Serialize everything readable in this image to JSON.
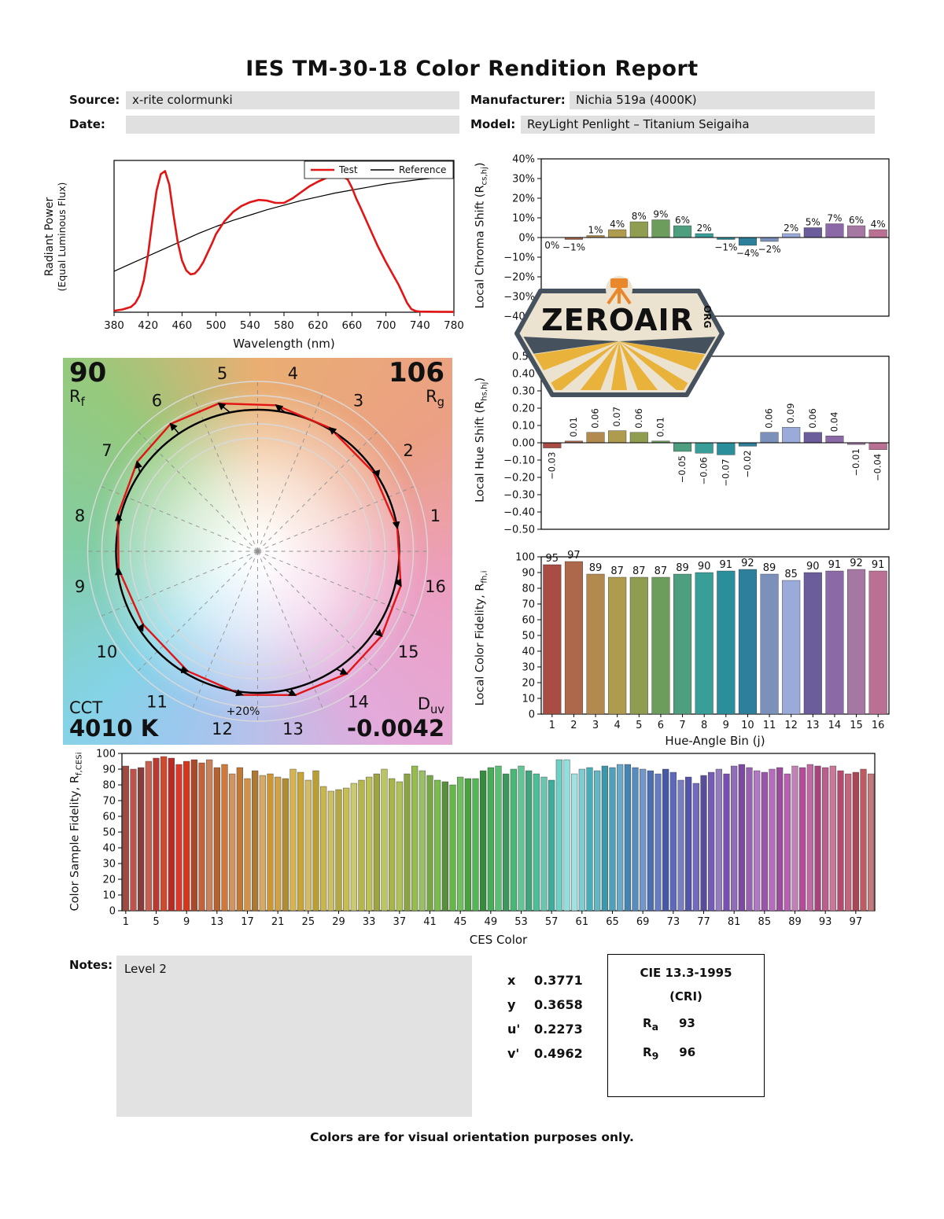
{
  "title": "IES TM-30-18 Color Rendition Report",
  "header": {
    "source_label": "Source:",
    "source_value": "x-rite colormunki",
    "manufacturer_label": "Manufacturer:",
    "manufacturer_value": "Nichia 519a (4000K)",
    "date_label": "Date:",
    "date_value": "",
    "model_label": "Model:",
    "model_value": "ReyLight Penlight – Titanium Seigaiha"
  },
  "watermark": {
    "name": "ZEROAIR",
    "org": "ORG"
  },
  "hue_bin_colors": [
    "#a84c44",
    "#ad684c",
    "#b28a50",
    "#ae9b4e",
    "#8f9d50",
    "#6d9d5c",
    "#4d9f80",
    "#389e97",
    "#2b8f9b",
    "#2d7f9c",
    "#7b90ba",
    "#9aaad9",
    "#6b5c9b",
    "#8a69a6",
    "#a478a2",
    "#ba7093"
  ],
  "chart_data": [
    {
      "id": "spd",
      "type": "line",
      "xlabel": "Wavelength (nm)",
      "ylabel_line1": "Radiant Power",
      "ylabel_line2": "(Equal Luminous Flux)",
      "xlim": [
        380,
        780
      ],
      "xticks": [
        380,
        420,
        460,
        500,
        540,
        580,
        620,
        660,
        700,
        740,
        780
      ],
      "legend": [
        {
          "label": "Test",
          "color": "#e21414"
        },
        {
          "label": "Reference",
          "color": "#000000"
        }
      ],
      "series": [
        {
          "name": "Reference",
          "color": "#000000",
          "width": 1.2,
          "points": [
            [
              380,
              0.27
            ],
            [
              400,
              0.32
            ],
            [
              420,
              0.37
            ],
            [
              440,
              0.42
            ],
            [
              460,
              0.47
            ],
            [
              480,
              0.52
            ],
            [
              500,
              0.565
            ],
            [
              520,
              0.605
            ],
            [
              540,
              0.64
            ],
            [
              560,
              0.675
            ],
            [
              580,
              0.705
            ],
            [
              600,
              0.735
            ],
            [
              620,
              0.76
            ],
            [
              640,
              0.785
            ],
            [
              660,
              0.805
            ],
            [
              680,
              0.825
            ],
            [
              700,
              0.845
            ],
            [
              720,
              0.86
            ],
            [
              740,
              0.875
            ],
            [
              760,
              0.885
            ],
            [
              780,
              0.895
            ]
          ]
        },
        {
          "name": "Test",
          "color": "#e21414",
          "width": 2.6,
          "points": [
            [
              380,
              0.01
            ],
            [
              390,
              0.018
            ],
            [
              400,
              0.035
            ],
            [
              405,
              0.06
            ],
            [
              410,
              0.11
            ],
            [
              415,
              0.21
            ],
            [
              420,
              0.38
            ],
            [
              425,
              0.6
            ],
            [
              430,
              0.8
            ],
            [
              435,
              0.91
            ],
            [
              440,
              0.93
            ],
            [
              445,
              0.84
            ],
            [
              450,
              0.64
            ],
            [
              455,
              0.46
            ],
            [
              460,
              0.34
            ],
            [
              465,
              0.275
            ],
            [
              470,
              0.25
            ],
            [
              475,
              0.255
            ],
            [
              480,
              0.285
            ],
            [
              485,
              0.33
            ],
            [
              490,
              0.39
            ],
            [
              495,
              0.45
            ],
            [
              500,
              0.515
            ],
            [
              510,
              0.6
            ],
            [
              520,
              0.66
            ],
            [
              530,
              0.7
            ],
            [
              540,
              0.725
            ],
            [
              550,
              0.74
            ],
            [
              560,
              0.735
            ],
            [
              570,
              0.72
            ],
            [
              580,
              0.72
            ],
            [
              590,
              0.75
            ],
            [
              600,
              0.79
            ],
            [
              610,
              0.83
            ],
            [
              620,
              0.86
            ],
            [
              630,
              0.885
            ],
            [
              640,
              0.9
            ],
            [
              650,
              0.89
            ],
            [
              655,
              0.875
            ],
            [
              660,
              0.82
            ],
            [
              665,
              0.75
            ],
            [
              670,
              0.69
            ],
            [
              680,
              0.565
            ],
            [
              690,
              0.44
            ],
            [
              700,
              0.33
            ],
            [
              710,
              0.23
            ],
            [
              715,
              0.18
            ],
            [
              720,
              0.12
            ],
            [
              725,
              0.06
            ],
            [
              730,
              0.02
            ],
            [
              735,
              0.008
            ],
            [
              740,
              0.004
            ],
            [
              760,
              0.003
            ],
            [
              780,
              0.002
            ]
          ]
        }
      ]
    },
    {
      "id": "chroma_shift",
      "type": "bar",
      "ylabel_main": "Local Chroma Shift (R",
      "ylabel_sub": "cs,hj",
      "ylabel_end": ")",
      "ylim": [
        -40,
        40
      ],
      "ystep": 10,
      "yunit": "%",
      "categories": [
        1,
        2,
        3,
        4,
        5,
        6,
        7,
        8,
        9,
        10,
        11,
        12,
        13,
        14,
        15,
        16
      ],
      "values": [
        0,
        -1,
        1,
        4,
        8,
        9,
        6,
        2,
        -1,
        -4,
        -2,
        2,
        5,
        7,
        6,
        4
      ],
      "labels": [
        "0%",
        "-1%",
        "1%",
        "4%",
        "8%",
        "9%",
        "6%",
        "2%",
        "-1%",
        "-4%",
        "-2%",
        "2%",
        "5%",
        "7%",
        "6%",
        "4%"
      ]
    },
    {
      "id": "hue_shift",
      "type": "bar",
      "ylabel_main": "Local Hue Shift (R",
      "ylabel_sub": "hs,hj",
      "ylabel_end": ")",
      "ylim": [
        -0.5,
        0.5
      ],
      "ystep": 0.1,
      "categories": [
        1,
        2,
        3,
        4,
        5,
        6,
        7,
        8,
        9,
        10,
        11,
        12,
        13,
        14,
        15,
        16
      ],
      "values": [
        -0.03,
        0.01,
        0.06,
        0.07,
        0.06,
        0.01,
        -0.05,
        -0.06,
        -0.07,
        -0.02,
        0.06,
        0.09,
        0.06,
        0.04,
        -0.01,
        -0.04
      ],
      "labels": [
        "-0.03",
        "0.01",
        "0.06",
        "0.07",
        "0.06",
        "0.01",
        "-0.05",
        "-0.06",
        "-0.07",
        "-0.02",
        "0.06",
        "0.09",
        "0.06",
        "0.04",
        "-0.01",
        "-0.04"
      ]
    },
    {
      "id": "local_fidelity",
      "type": "bar",
      "ylabel_main": "Local Color Fidelity, R",
      "ylabel_sub": "fh,i",
      "ylabel_end": "",
      "xlabel": "Hue-Angle Bin (j)",
      "ylim": [
        0,
        100
      ],
      "ystep": 10,
      "categories": [
        1,
        2,
        3,
        4,
        5,
        6,
        7,
        8,
        9,
        10,
        11,
        12,
        13,
        14,
        15,
        16
      ],
      "values": [
        95,
        97,
        89,
        87,
        87,
        87,
        89,
        90,
        91,
        92,
        89,
        85,
        90,
        91,
        92,
        91
      ],
      "labels": [
        "95",
        "97",
        "89",
        "87",
        "87",
        "87",
        "89",
        "90",
        "91",
        "92",
        "89",
        "85",
        "90",
        "91",
        "92",
        "91"
      ]
    },
    {
      "id": "ces_fidelity",
      "type": "bar",
      "ylabel_main": "Color Sample Fidelity, R",
      "ylabel_sub": "f,CESi",
      "ylabel_end": "",
      "xlabel": "CES Color",
      "ylim": [
        0,
        100
      ],
      "ystep": 10,
      "xticks": [
        1,
        5,
        9,
        13,
        17,
        21,
        25,
        29,
        33,
        37,
        41,
        45,
        49,
        53,
        57,
        61,
        65,
        69,
        73,
        77,
        81,
        85,
        89,
        93,
        97
      ],
      "values": [
        92,
        90,
        91,
        95,
        97,
        98,
        97,
        93,
        95,
        96,
        94,
        96,
        91,
        93,
        87,
        91,
        84,
        89,
        86,
        87,
        85,
        84,
        90,
        88,
        83,
        89,
        79,
        76,
        77,
        78,
        81,
        83,
        85,
        87,
        90,
        84,
        82,
        87,
        92,
        89,
        86,
        83,
        82,
        80,
        85,
        84,
        84,
        89,
        91,
        92,
        87,
        90,
        92,
        89,
        87,
        85,
        83,
        96,
        96,
        87,
        90,
        91,
        89,
        92,
        91,
        93,
        93,
        91,
        90,
        89,
        87,
        90,
        88,
        83,
        85,
        81,
        86,
        88,
        90,
        87,
        92,
        93,
        91,
        89,
        88,
        90,
        91,
        87,
        92,
        91,
        93,
        92,
        91,
        92,
        89,
        87,
        88,
        90,
        87
      ],
      "bar_colors": [
        "hsl(6,42%,44%)",
        "hsl(4,48%,52%)",
        "hsl(2,40%,38%)",
        "hsl(8,52%,55%)",
        "hsl(4,58%,46%)",
        "hsl(10,62%,50%)",
        "hsl(2,66%,44%)",
        "hsl(4,72%,52%)",
        "hsl(8,76%,48%)",
        "hsl(14,58%,42%)",
        "hsl(17,54%,50%)",
        "hsl(20,50%,58%)",
        "hsl(22,58%,45%)",
        "hsl(25,62%,52%)",
        "hsl(28,54%,60%)",
        "hsl(30,58%,48%)",
        "hsl(32,62%,55%)",
        "hsl(34,54%,44%)",
        "hsl(36,58%,62%)",
        "hsl(38,62%,50%)",
        "hsl(40,58%,55%)",
        "hsl(42,54%,45%)",
        "hsl(44,62%,58%)",
        "hsl(45,58%,50%)",
        "hsl(46,54%,62%)",
        "hsl(48,58%,46%)",
        "hsl(50,54%,55%)",
        "hsl(52,50%,60%)",
        "hsl(54,46%,48%)",
        "hsl(56,50%,55%)",
        "hsl(58,46%,62%)",
        "hsl(60,42%,50%)",
        "hsl(62,46%,55%)",
        "hsl(64,42%,45%)",
        "hsl(66,46%,58%)",
        "hsl(68,42%,50%)",
        "hsl(70,46%,55%)",
        "hsl(75,42%,45%)",
        "hsl(80,45%,52%)",
        "hsl(85,40%,58%)",
        "hsl(90,42%,46%)",
        "hsl(95,45%,52%)",
        "hsl(100,40%,40%)",
        "hsl(105,44%,50%)",
        "hsl(110,42%,56%)",
        "hsl(115,44%,44%)",
        "hsl(120,40%,52%)",
        "hsl(125,44%,38%)",
        "hsl(130,42%,48%)",
        "hsl(135,44%,55%)",
        "hsl(140,42%,42%)",
        "hsl(145,44%,50%)",
        "hsl(150,46%,58%)",
        "hsl(155,44%,45%)",
        "hsl(160,48%,52%)",
        "hsl(165,44%,60%)",
        "hsl(170,48%,46%)",
        "hsl(174,50%,62%)",
        "hsl(178,55%,72%)",
        "hsl(181,52%,76%)",
        "hsl(184,48%,66%)",
        "hsl(186,46%,50%)",
        "hsl(188,44%,58%)",
        "hsl(190,48%,45%)",
        "hsl(195,44%,52%)",
        "hsl(200,46%,60%)",
        "hsl(205,44%,48%)",
        "hsl(210,46%,55%)",
        "hsl(215,44%,62%)",
        "hsl(220,40%,50%)",
        "hsl(225,44%,58%)",
        "hsl(228,40%,46%)",
        "hsl(232,42%,55%)",
        "hsl(236,38%,62%)",
        "hsl(240,34%,50%)",
        "hsl(245,38%,58%)",
        "hsl(250,34%,45%)",
        "hsl(255,38%,54%)",
        "hsl(260,34%,62%)",
        "hsl(265,38%,50%)",
        "hsl(270,34%,57%)",
        "hsl(275,38%,46%)",
        "hsl(280,34%,54%)",
        "hsl(285,38%,62%)",
        "hsl(290,34%,50%)",
        "hsl(295,38%,58%)",
        "hsl(300,34%,46%)",
        "hsl(305,38%,55%)",
        "hsl(310,34%,63%)",
        "hsl(315,40%,50%)",
        "hsl(320,38%,58%)",
        "hsl(325,42%,46%)",
        "hsl(330,40%,55%)",
        "hsl(335,44%,63%)",
        "hsl(340,42%,50%)",
        "hsl(345,44%,58%)",
        "hsl(350,42%,47%)",
        "hsl(355,44%,55%)",
        "hsl(358,40%,62%)"
      ]
    }
  ],
  "color_vector": {
    "rf_value": "90",
    "rf_label": "R",
    "rf_sub": "f",
    "rg_value": "106",
    "rg_label": "R",
    "rg_sub": "g",
    "cct_label": "CCT",
    "cct_value": "4010 K",
    "duv_label": "D",
    "duv_sub": "uv",
    "duv_value": "-0.0042",
    "ring_label": "+20%",
    "bin_numbers": [
      1,
      2,
      3,
      4,
      5,
      6,
      7,
      8,
      9,
      10,
      11,
      12,
      13,
      14,
      15,
      16
    ]
  },
  "notes": {
    "label": "Notes:",
    "value": "Level 2"
  },
  "chromaticity": {
    "rows": [
      {
        "label": "x",
        "value": "0.3771"
      },
      {
        "label": "y",
        "value": "0.3658"
      },
      {
        "label": "u'",
        "value": "0.2273"
      },
      {
        "label": "v'",
        "value": "0.4962"
      }
    ]
  },
  "cri": {
    "title": "CIE 13.3-1995",
    "subtitle": "(CRI)",
    "rows": [
      {
        "label": "R",
        "sub": "a",
        "value": "93"
      },
      {
        "label": "R",
        "sub": "9",
        "value": "96"
      }
    ]
  },
  "footer": "Colors are for visual orientation purposes only."
}
